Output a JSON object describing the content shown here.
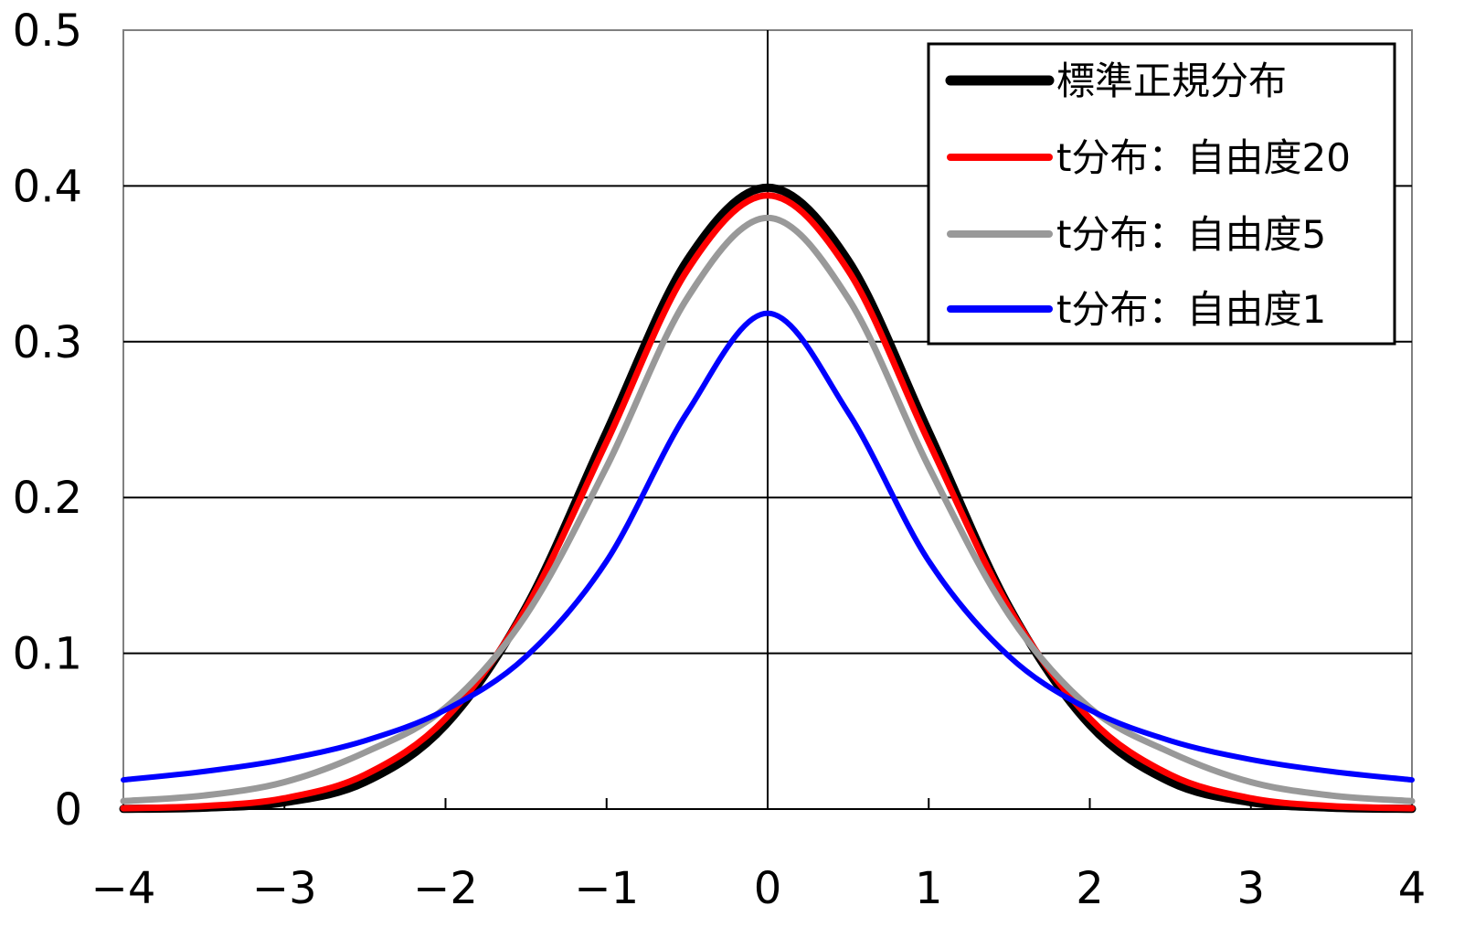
{
  "chart_data": {
    "type": "line",
    "title": "",
    "xlabel": "",
    "ylabel": "",
    "xlim": [
      -4,
      4
    ],
    "ylim": [
      0,
      0.5
    ],
    "x_ticks": [
      -4,
      -3,
      -2,
      -1,
      0,
      1,
      2,
      3,
      4
    ],
    "x_tick_labels": [
      "−4",
      "−3",
      "−2",
      "−1",
      "0",
      "1",
      "2",
      "3",
      "4"
    ],
    "y_ticks": [
      0,
      0.1,
      0.2,
      0.3,
      0.4,
      0.5
    ],
    "y_tick_labels": [
      "0",
      "0.1",
      "0.2",
      "0.3",
      "0.4",
      "0.5"
    ],
    "grid": "horizontal",
    "legend_position": "top-right",
    "x": [
      -4,
      -3.5,
      -3,
      -2.5,
      -2,
      -1.5,
      -1,
      -0.5,
      0,
      0.5,
      1,
      1.5,
      2,
      2.5,
      3,
      3.5,
      4
    ],
    "series": [
      {
        "name": "標準正規分布",
        "color": "#000000",
        "values": [
          0.0001,
          0.0009,
          0.0044,
          0.0175,
          0.054,
          0.1295,
          0.242,
          0.3521,
          0.3989,
          0.3521,
          0.242,
          0.1295,
          0.054,
          0.0175,
          0.0044,
          0.0009,
          0.0001
        ]
      },
      {
        "name": "t分布：自由度20",
        "color": "#ff0000",
        "values": [
          0.0005,
          0.0019,
          0.0069,
          0.022,
          0.0581,
          0.129,
          0.2357,
          0.3458,
          0.3939,
          0.3458,
          0.2357,
          0.129,
          0.0581,
          0.022,
          0.0069,
          0.0019,
          0.0005
        ]
      },
      {
        "name": "t分布：自由度5",
        "color": "#999999",
        "values": [
          0.0051,
          0.0087,
          0.0173,
          0.0364,
          0.0651,
          0.1245,
          0.2197,
          0.3279,
          0.3796,
          0.3279,
          0.2197,
          0.1245,
          0.0651,
          0.0364,
          0.0173,
          0.0087,
          0.0051
        ]
      },
      {
        "name": "t分布：自由度1",
        "color": "#0000ff",
        "values": [
          0.0187,
          0.0241,
          0.0318,
          0.0439,
          0.0637,
          0.0979,
          0.1592,
          0.2546,
          0.3183,
          0.2546,
          0.1592,
          0.0979,
          0.0637,
          0.0439,
          0.0318,
          0.0241,
          0.0187
        ]
      }
    ]
  }
}
